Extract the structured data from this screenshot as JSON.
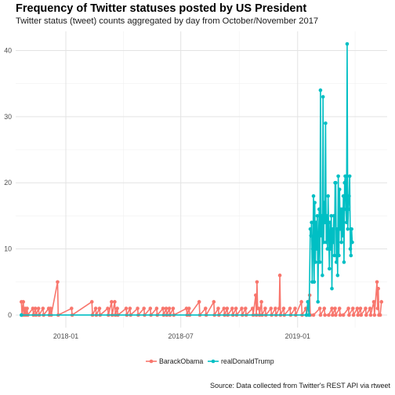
{
  "chart_data": {
    "type": "line",
    "title": "Frequency of Twitter statuses posted by US President",
    "subtitle": "Twitter status (tweet) counts aggregated by day from October/November 2017",
    "caption": "Source: Data collected from Twitter's REST API via rtweet",
    "xlabel": "",
    "ylabel": "",
    "x_range": [
      "2017-10-14",
      "2019-05-22"
    ],
    "x_ticks": [
      "2018-01-01",
      "2018-07-01",
      "2019-01-01"
    ],
    "x_tick_labels": [
      "2018-01",
      "2018-07",
      "2019-01"
    ],
    "ylim": [
      -1.9,
      42.9
    ],
    "y_ticks": [
      0,
      10,
      20,
      30,
      40
    ],
    "grid": true,
    "legend_position": "bottom",
    "series": [
      {
        "name": "BarackObama",
        "color": "#F8766D",
        "points": [
          [
            "2017-10-23",
            2
          ],
          [
            "2017-10-24",
            0
          ],
          [
            "2017-10-26",
            2
          ],
          [
            "2017-10-27",
            0
          ],
          [
            "2017-10-29",
            1
          ],
          [
            "2017-10-30",
            0
          ],
          [
            "2017-11-01",
            1
          ],
          [
            "2017-11-02",
            0
          ],
          [
            "2017-11-10",
            1
          ],
          [
            "2017-11-11",
            0
          ],
          [
            "2017-11-14",
            1
          ],
          [
            "2017-11-15",
            0
          ],
          [
            "2017-11-19",
            1
          ],
          [
            "2017-11-20",
            0
          ],
          [
            "2017-11-26",
            1
          ],
          [
            "2017-11-27",
            0
          ],
          [
            "2017-12-05",
            1
          ],
          [
            "2017-12-06",
            0
          ],
          [
            "2017-12-08",
            1
          ],
          [
            "2017-12-09",
            0
          ],
          [
            "2017-12-19",
            5
          ],
          [
            "2017-12-20",
            0
          ],
          [
            "2018-01-10",
            1
          ],
          [
            "2018-01-11",
            0
          ],
          [
            "2018-02-11",
            2
          ],
          [
            "2018-02-12",
            0
          ],
          [
            "2018-02-17",
            1
          ],
          [
            "2018-02-18",
            0
          ],
          [
            "2018-02-23",
            1
          ],
          [
            "2018-02-24",
            0
          ],
          [
            "2018-03-08",
            1
          ],
          [
            "2018-03-09",
            0
          ],
          [
            "2018-03-14",
            2
          ],
          [
            "2018-03-15",
            0
          ],
          [
            "2018-03-19",
            2
          ],
          [
            "2018-03-20",
            0
          ],
          [
            "2018-03-23",
            1
          ],
          [
            "2018-03-24",
            0
          ],
          [
            "2018-04-06",
            1
          ],
          [
            "2018-04-07",
            0
          ],
          [
            "2018-04-12",
            1
          ],
          [
            "2018-04-13",
            0
          ],
          [
            "2018-04-24",
            1
          ],
          [
            "2018-04-25",
            0
          ],
          [
            "2018-05-04",
            1
          ],
          [
            "2018-05-05",
            0
          ],
          [
            "2018-05-14",
            1
          ],
          [
            "2018-05-15",
            0
          ],
          [
            "2018-05-24",
            1
          ],
          [
            "2018-05-25",
            0
          ],
          [
            "2018-06-03",
            1
          ],
          [
            "2018-06-04",
            0
          ],
          [
            "2018-06-08",
            1
          ],
          [
            "2018-06-09",
            0
          ],
          [
            "2018-06-13",
            1
          ],
          [
            "2018-06-14",
            0
          ],
          [
            "2018-06-19",
            1
          ],
          [
            "2018-06-20",
            0
          ],
          [
            "2018-07-10",
            1
          ],
          [
            "2018-07-11",
            0
          ],
          [
            "2018-07-14",
            1
          ],
          [
            "2018-07-15",
            0
          ],
          [
            "2018-07-30",
            2
          ],
          [
            "2018-07-31",
            0
          ],
          [
            "2018-08-09",
            1
          ],
          [
            "2018-08-10",
            0
          ],
          [
            "2018-08-22",
            2
          ],
          [
            "2018-08-23",
            0
          ],
          [
            "2018-08-29",
            1
          ],
          [
            "2018-08-30",
            0
          ],
          [
            "2018-09-07",
            1
          ],
          [
            "2018-09-08",
            0
          ],
          [
            "2018-09-12",
            1
          ],
          [
            "2018-09-13",
            0
          ],
          [
            "2018-09-20",
            1
          ],
          [
            "2018-09-21",
            0
          ],
          [
            "2018-09-26",
            1
          ],
          [
            "2018-09-27",
            0
          ],
          [
            "2018-10-05",
            1
          ],
          [
            "2018-10-06",
            0
          ],
          [
            "2018-10-11",
            1
          ],
          [
            "2018-10-12",
            0
          ],
          [
            "2018-10-22",
            1
          ],
          [
            "2018-10-23",
            0
          ],
          [
            "2018-10-27",
            3
          ],
          [
            "2018-10-28",
            0
          ],
          [
            "2018-10-29",
            5
          ],
          [
            "2018-10-30",
            1
          ],
          [
            "2018-11-01",
            1
          ],
          [
            "2018-11-02",
            0
          ],
          [
            "2018-11-05",
            2
          ],
          [
            "2018-11-06",
            0
          ],
          [
            "2018-11-11",
            1
          ],
          [
            "2018-11-12",
            0
          ],
          [
            "2018-11-20",
            1
          ],
          [
            "2018-11-21",
            0
          ],
          [
            "2018-11-27",
            1
          ],
          [
            "2018-11-28",
            0
          ],
          [
            "2018-12-03",
            1
          ],
          [
            "2018-12-04",
            6
          ],
          [
            "2018-12-05",
            0
          ],
          [
            "2018-12-10",
            1
          ],
          [
            "2018-12-11",
            0
          ],
          [
            "2018-12-20",
            1
          ],
          [
            "2018-12-21",
            0
          ],
          [
            "2018-12-28",
            1
          ],
          [
            "2018-12-29",
            0
          ],
          [
            "2019-01-07",
            2
          ],
          [
            "2019-01-08",
            0
          ],
          [
            "2019-01-14",
            1
          ],
          [
            "2019-01-15",
            0
          ],
          [
            "2019-01-20",
            3
          ],
          [
            "2019-01-21",
            0
          ],
          [
            "2019-01-26",
            0
          ],
          [
            "2019-02-05",
            1
          ],
          [
            "2019-02-06",
            0
          ],
          [
            "2019-02-12",
            1
          ],
          [
            "2019-02-13",
            0
          ],
          [
            "2019-02-19",
            0
          ],
          [
            "2019-02-24",
            1
          ],
          [
            "2019-02-25",
            0
          ],
          [
            "2019-03-01",
            1
          ],
          [
            "2019-03-02",
            0
          ],
          [
            "2019-03-08",
            1
          ],
          [
            "2019-03-09",
            0
          ],
          [
            "2019-03-14",
            0
          ],
          [
            "2019-03-22",
            1
          ],
          [
            "2019-03-23",
            0
          ],
          [
            "2019-03-29",
            1
          ],
          [
            "2019-03-30",
            0
          ],
          [
            "2019-04-05",
            1
          ],
          [
            "2019-04-06",
            0
          ],
          [
            "2019-04-10",
            1
          ],
          [
            "2019-04-11",
            0
          ],
          [
            "2019-04-18",
            1
          ],
          [
            "2019-04-19",
            0
          ],
          [
            "2019-04-25",
            1
          ],
          [
            "2019-04-26",
            0
          ],
          [
            "2019-05-01",
            2
          ],
          [
            "2019-05-02",
            0
          ],
          [
            "2019-05-06",
            5
          ],
          [
            "2019-05-07",
            1
          ],
          [
            "2019-05-08",
            4
          ],
          [
            "2019-05-09",
            0
          ],
          [
            "2019-05-11",
            0
          ],
          [
            "2019-05-13",
            2
          ]
        ]
      },
      {
        "name": "realDonaldTrump",
        "color": "#00BFC4",
        "points": [
          [
            "2017-10-23",
            0
          ],
          [
            "2019-01-15",
            0
          ],
          [
            "2019-01-17",
            2
          ],
          [
            "2019-01-19",
            0
          ],
          [
            "2019-01-21",
            13
          ],
          [
            "2019-01-22",
            12
          ],
          [
            "2019-01-23",
            14
          ],
          [
            "2019-01-24",
            5
          ],
          [
            "2019-01-25",
            10
          ],
          [
            "2019-01-26",
            18
          ],
          [
            "2019-01-27",
            5
          ],
          [
            "2019-01-28",
            17
          ],
          [
            "2019-01-29",
            8
          ],
          [
            "2019-01-30",
            14
          ],
          [
            "2019-01-31",
            10
          ],
          [
            "2019-02-01",
            15
          ],
          [
            "2019-02-02",
            2
          ],
          [
            "2019-02-03",
            12
          ],
          [
            "2019-02-04",
            16
          ],
          [
            "2019-02-05",
            8
          ],
          [
            "2019-02-06",
            34
          ],
          [
            "2019-02-07",
            12
          ],
          [
            "2019-02-08",
            15
          ],
          [
            "2019-02-09",
            6
          ],
          [
            "2019-02-10",
            33
          ],
          [
            "2019-02-11",
            11
          ],
          [
            "2019-02-12",
            17
          ],
          [
            "2019-02-13",
            14
          ],
          [
            "2019-02-14",
            29
          ],
          [
            "2019-02-15",
            11
          ],
          [
            "2019-02-16",
            15
          ],
          [
            "2019-02-17",
            10
          ],
          [
            "2019-02-18",
            18
          ],
          [
            "2019-02-19",
            12
          ],
          [
            "2019-02-20",
            7
          ],
          [
            "2019-02-21",
            14
          ],
          [
            "2019-02-22",
            10
          ],
          [
            "2019-02-23",
            15
          ],
          [
            "2019-02-24",
            4
          ],
          [
            "2019-02-25",
            13
          ],
          [
            "2019-02-26",
            11
          ],
          [
            "2019-02-27",
            15
          ],
          [
            "2019-02-28",
            9
          ],
          [
            "2019-03-01",
            20
          ],
          [
            "2019-03-02",
            20
          ],
          [
            "2019-03-03",
            8
          ],
          [
            "2019-03-04",
            13
          ],
          [
            "2019-03-05",
            6
          ],
          [
            "2019-03-06",
            21
          ],
          [
            "2019-03-07",
            9
          ],
          [
            "2019-03-08",
            19
          ],
          [
            "2019-03-09",
            13
          ],
          [
            "2019-03-10",
            16
          ],
          [
            "2019-03-11",
            11
          ],
          [
            "2019-03-12",
            16
          ],
          [
            "2019-03-13",
            12
          ],
          [
            "2019-03-14",
            18
          ],
          [
            "2019-03-15",
            8
          ],
          [
            "2019-03-16",
            20
          ],
          [
            "2019-03-17",
            21
          ],
          [
            "2019-03-18",
            16
          ],
          [
            "2019-03-19",
            14
          ],
          [
            "2019-03-20",
            41
          ],
          [
            "2019-03-21",
            13
          ],
          [
            "2019-03-22",
            16
          ],
          [
            "2019-03-23",
            18
          ],
          [
            "2019-03-24",
            21
          ],
          [
            "2019-03-25",
            10
          ],
          [
            "2019-03-26",
            9
          ],
          [
            "2019-03-27",
            13
          ],
          [
            "2019-03-28",
            11
          ]
        ]
      }
    ]
  }
}
